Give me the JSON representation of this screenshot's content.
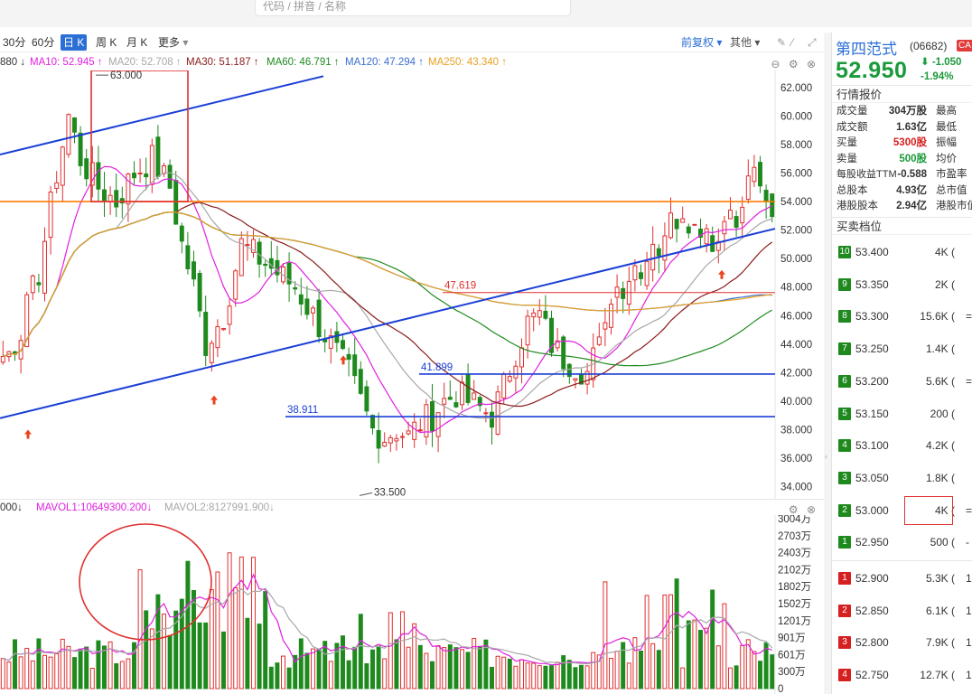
{
  "search": {
    "placeholder": "代码 / 拼音 / 名称"
  },
  "toolbar": {
    "periods": [
      "30分",
      "60分",
      "日 K",
      "周 K",
      "月 K",
      "更多"
    ],
    "active_period_index": 2,
    "more_arrow": "▾",
    "adjust_label": "前复权",
    "other_label": "其他",
    "icons": [
      "pencil-icon",
      "brush-icon",
      "fullscreen-icon"
    ]
  },
  "ma_legend": [
    {
      "label": "880 ↓",
      "color": "#333333"
    },
    {
      "label": "MA10: 52.945 ↑",
      "color": "#e020e0"
    },
    {
      "label": "MA20: 52.708 ↑",
      "color": "#a8a8a8"
    },
    {
      "label": "MA30: 51.187 ↑",
      "color": "#8b1a1a"
    },
    {
      "label": "MA60: 46.791 ↑",
      "color": "#1e8a1e"
    },
    {
      "label": "MA120: 47.294 ↑",
      "color": "#3a6fd0"
    },
    {
      "label": "MA250: 43.340 ↑",
      "color": "#e8a020"
    }
  ],
  "vol_legend": [
    {
      "label": "000↓",
      "color": "#333333"
    },
    {
      "label": "MAVOL1:10649300.200↓",
      "color": "#e020e0"
    },
    {
      "label": "MAVOL2:8127991.900↓",
      "color": "#a8a8a8"
    }
  ],
  "panel_icons": [
    "minus-icon",
    "settings-icon",
    "close-icon"
  ],
  "stock": {
    "name": "第四范式",
    "code": "(06682)",
    "tag": "CA",
    "price": "52.950",
    "change": "-1.050",
    "change_pct": "-1.94%",
    "change_arrow": "⬇"
  },
  "quote_section_title": "行情报价",
  "quote_rows": [
    {
      "label": "成交量",
      "value": "304万股",
      "value_color": "#333333",
      "right_label": "最高"
    },
    {
      "label": "成交额",
      "value": "1.63亿",
      "value_color": "#333333",
      "right_label": "最低"
    },
    {
      "label": "买量",
      "value": "5300股",
      "value_color": "#d62020",
      "right_label": "振幅"
    },
    {
      "label": "卖量",
      "value": "500股",
      "value_color": "#1a9a3a",
      "right_label": "均价"
    },
    {
      "label": "每股收益TTM",
      "value": "-0.588",
      "value_color": "#333333",
      "right_label": "市盈率"
    },
    {
      "label": "总股本",
      "value": "4.93亿",
      "value_color": "#333333",
      "right_label": "总市值"
    },
    {
      "label": "港股股本",
      "value": "2.94亿",
      "value_color": "#333333",
      "right_label": "港股市值"
    }
  ],
  "orderbook_title": "买卖档位",
  "asks": [
    {
      "level": "10",
      "price": "53.400",
      "volume": "4K (",
      "tail": ""
    },
    {
      "level": "9",
      "price": "53.350",
      "volume": "2K (",
      "tail": ""
    },
    {
      "level": "8",
      "price": "53.300",
      "volume": "15.6K (",
      "tail": "="
    },
    {
      "level": "7",
      "price": "53.250",
      "volume": "1.4K (",
      "tail": ""
    },
    {
      "level": "6",
      "price": "53.200",
      "volume": "5.6K (",
      "tail": "="
    },
    {
      "level": "5",
      "price": "53.150",
      "volume": "200 (",
      "tail": ""
    },
    {
      "level": "4",
      "price": "53.100",
      "volume": "4.2K (",
      "tail": ""
    },
    {
      "level": "3",
      "price": "53.050",
      "volume": "1.8K (",
      "tail": ""
    },
    {
      "level": "2",
      "price": "53.000",
      "volume": "4K (",
      "tail": "="
    },
    {
      "level": "1",
      "price": "52.950",
      "volume": "500 (",
      "tail": "-"
    }
  ],
  "bids": [
    {
      "level": "1",
      "price": "52.900",
      "volume": "5.3K (",
      "tail": "1"
    },
    {
      "level": "2",
      "price": "52.850",
      "volume": "6.1K (",
      "tail": "1"
    },
    {
      "level": "3",
      "price": "52.800",
      "volume": "7.9K (",
      "tail": "1"
    },
    {
      "level": "4",
      "price": "52.750",
      "volume": "12.7K (",
      "tail": "1"
    }
  ],
  "colors": {
    "up": "#e03030",
    "down": "#1e8a1e",
    "accent": "#2b6fd6",
    "trend": "#1a3fd6",
    "level": "#ff7b00",
    "ask_badge": "#1e8a1e",
    "bid_badge": "#d62020"
  },
  "chart_data": {
    "type": "candlestick",
    "y_ticks": [
      "62.000",
      "60.000",
      "58.000",
      "56.000",
      "54.000",
      "52.000",
      "50.000",
      "48.000",
      "46.000",
      "44.000",
      "42.000",
      "40.000",
      "38.000",
      "36.000",
      "34.000"
    ],
    "ylim": [
      33.4,
      63.2
    ],
    "price_labels": [
      {
        "text": "63.000",
        "price": 63.0
      },
      {
        "text": "33.500",
        "price": 33.5
      }
    ],
    "horizontal_levels": [
      {
        "label": "",
        "price": 54.0,
        "color": "#ff7b00"
      },
      {
        "label": "47.619",
        "price": 47.619,
        "color": "#e03030"
      },
      {
        "label": "41.899",
        "price": 41.899,
        "color": "#1a3fd6"
      },
      {
        "label": "38.911",
        "price": 38.911,
        "color": "#1a3fd6"
      }
    ],
    "volume_ticks": [
      "3004万",
      "2703万",
      "2403万",
      "2102万",
      "1802万",
      "1502万",
      "1201万",
      "901万",
      "601万",
      "300万",
      "0"
    ],
    "volume_max": 3004,
    "bars": 120,
    "annotations": [
      "rectangle-highlight",
      "ellipse-highlight",
      "buy-arrows"
    ]
  }
}
